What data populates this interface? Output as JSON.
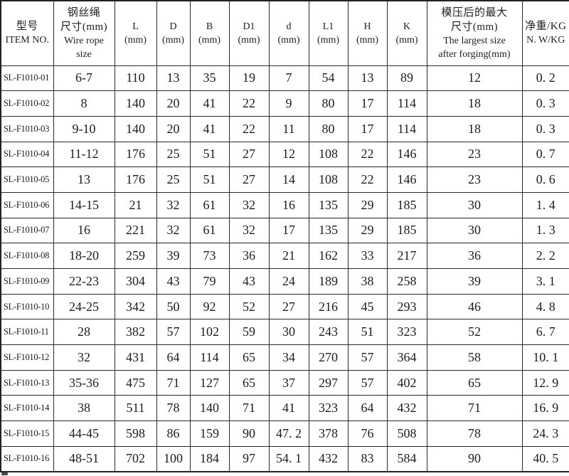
{
  "colors": {
    "background": "#ffffff",
    "border": "#2a2a2a",
    "text": "#1c1c1c"
  },
  "table": {
    "columns": [
      {
        "id": "item-no",
        "lines": [
          "型号",
          "ITEM NO."
        ]
      },
      {
        "id": "wire-rope-size",
        "lines": [
          "钢丝绳",
          "尺寸(mm)",
          "Wire rope",
          "size"
        ]
      },
      {
        "id": "l",
        "lines": [
          "L",
          "(mm)"
        ]
      },
      {
        "id": "d-cap",
        "lines": [
          "D",
          "(mm)"
        ]
      },
      {
        "id": "b",
        "lines": [
          "B",
          "(mm)"
        ]
      },
      {
        "id": "d1",
        "lines": [
          "D1",
          "(mm)"
        ]
      },
      {
        "id": "d-small",
        "lines": [
          "d",
          "(mm)"
        ]
      },
      {
        "id": "l1",
        "lines": [
          "L1",
          "(mm)"
        ]
      },
      {
        "id": "h",
        "lines": [
          "H",
          "(mm)"
        ]
      },
      {
        "id": "k",
        "lines": [
          "K",
          "(mm)"
        ]
      },
      {
        "id": "largest-size",
        "lines": [
          "模压后的最大",
          "尺寸(mm)",
          "The largest size",
          "after forging(mm)"
        ]
      },
      {
        "id": "net-weight",
        "lines": [
          "净重/KG",
          "N. W/KG"
        ]
      }
    ],
    "rows": [
      [
        "SL-F1010-01",
        "6-7",
        "110",
        "13",
        "35",
        "19",
        "7",
        "54",
        "13",
        "89",
        "12",
        "0. 2"
      ],
      [
        "SL-F1010-02",
        "8",
        "140",
        "20",
        "41",
        "22",
        "9",
        "80",
        "17",
        "114",
        "18",
        "0. 3"
      ],
      [
        "SL-F1010-03",
        "9-10",
        "140",
        "20",
        "41",
        "22",
        "11",
        "80",
        "17",
        "114",
        "18",
        "0. 3"
      ],
      [
        "SL-F1010-04",
        "11-12",
        "176",
        "25",
        "51",
        "27",
        "12",
        "108",
        "22",
        "146",
        "23",
        "0. 7"
      ],
      [
        "SL-F1010-05",
        "13",
        "176",
        "25",
        "51",
        "27",
        "14",
        "108",
        "22",
        "146",
        "23",
        "0. 6"
      ],
      [
        "SL-F1010-06",
        "14-15",
        "21",
        "32",
        "61",
        "32",
        "16",
        "135",
        "29",
        "185",
        "30",
        "1. 4"
      ],
      [
        "SL-F1010-07",
        "16",
        "221",
        "32",
        "61",
        "32",
        "17",
        "135",
        "29",
        "185",
        "30",
        "1. 3"
      ],
      [
        "SL-F1010-08",
        "18-20",
        "259",
        "39",
        "73",
        "36",
        "21",
        "162",
        "33",
        "217",
        "36",
        "2. 2"
      ],
      [
        "SL-F1010-09",
        "22-23",
        "304",
        "43",
        "79",
        "43",
        "24",
        "189",
        "38",
        "258",
        "39",
        "3. 1"
      ],
      [
        "SL-F1010-10",
        "24-25",
        "342",
        "50",
        "92",
        "52",
        "27",
        "216",
        "45",
        "293",
        "46",
        "4. 8"
      ],
      [
        "SL-F1010-11",
        "28",
        "382",
        "57",
        "102",
        "59",
        "30",
        "243",
        "51",
        "323",
        "52",
        "6. 7"
      ],
      [
        "SL-F1010-12",
        "32",
        "431",
        "64",
        "114",
        "65",
        "34",
        "270",
        "57",
        "364",
        "58",
        "10. 1"
      ],
      [
        "SL-F1010-13",
        "35-36",
        "475",
        "71",
        "127",
        "65",
        "37",
        "297",
        "57",
        "402",
        "65",
        "12. 9"
      ],
      [
        "SL-F1010-14",
        "38",
        "511",
        "78",
        "140",
        "71",
        "41",
        "323",
        "64",
        "432",
        "71",
        "16. 9"
      ],
      [
        "SL-F1010-15",
        "44-45",
        "598",
        "86",
        "159",
        "90",
        "47. 2",
        "378",
        "76",
        "508",
        "78",
        "24. 3"
      ],
      [
        "SL-F1010-16",
        "48-51",
        "702",
        "100",
        "184",
        "97",
        "54. 1",
        "432",
        "83",
        "584",
        "90",
        "40. 5"
      ]
    ]
  }
}
